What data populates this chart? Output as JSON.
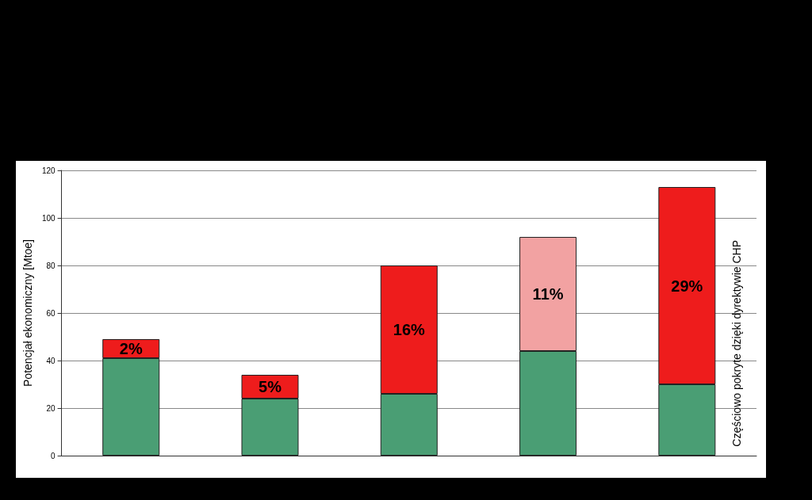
{
  "chart_data": {
    "type": "bar",
    "stacked": true,
    "categories": [
      null,
      null,
      null,
      null,
      null
    ],
    "ylabel": "Potencjał ekonomiczny [Mtoe]",
    "series": [
      {
        "color": "#4a9e74",
        "values": [
          41,
          24,
          26,
          44,
          30
        ]
      },
      {
        "color": "#ee1c1c",
        "colors": [
          "#ee1c1c",
          "#ee1c1c",
          "#ee1c1c",
          "#f2a2a2",
          "#ee1c1c"
        ],
        "values": [
          8,
          10,
          54,
          48,
          83
        ]
      }
    ],
    "ylim": [
      0,
      120
    ],
    "yticks": [
      0,
      20,
      40,
      60,
      80,
      100,
      120
    ],
    "grid": "y",
    "annotations": [
      "2%",
      "5%",
      "16%",
      "11%",
      "29%",
      "Częściowo pokryte dzięki dyrektywie CHP"
    ]
  }
}
